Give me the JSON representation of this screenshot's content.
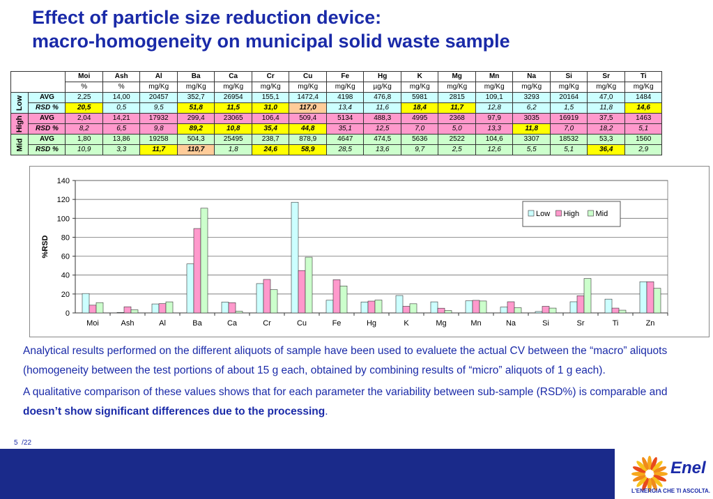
{
  "title": {
    "line1": "Effect of particle size reduction device:",
    "line2": "macro-homogeneity on municipal solid waste sample"
  },
  "table": {
    "elements": [
      "Moi",
      "Ash",
      "Al",
      "Ba",
      "Ca",
      "Cr",
      "Cu",
      "Fe",
      "Hg",
      "K",
      "Mg",
      "Mn",
      "Na",
      "Si",
      "Sr",
      "Ti"
    ],
    "units": [
      "%",
      "%",
      "mg/Kg",
      "mg/Kg",
      "mg/Kg",
      "mg/Kg",
      "mg/Kg",
      "mg/Kg",
      "µg/Kg",
      "mg/Kg",
      "mg/Kg",
      "mg/Kg",
      "mg/Kg",
      "mg/Kg",
      "mg/Kg",
      "mg/Kg"
    ],
    "groups": [
      {
        "name": "Low",
        "color": "#ccffff",
        "avg_label": "AVG",
        "rsd_label": "RSD %",
        "avg": [
          "2,25",
          "14,00",
          "20457",
          "352,7",
          "26954",
          "155,1",
          "1472,4",
          "4198",
          "476,8",
          "5981",
          "2815",
          "109,1",
          "3293",
          "20164",
          "47,0",
          "1484"
        ],
        "rsd": [
          "20,5",
          "0,5",
          "9,5",
          "51,8",
          "11,5",
          "31,0",
          "117,0",
          "13,4",
          "11,6",
          "18,4",
          "11,7",
          "12,8",
          "6,2",
          "1,5",
          "11,8",
          "14,6"
        ],
        "rsd_highlight": [
          "y",
          "",
          "",
          "y",
          "y",
          "y",
          "o",
          "",
          "",
          "y",
          "y",
          "",
          "",
          "",
          "",
          "y"
        ]
      },
      {
        "name": "High",
        "color": "#ff99cc",
        "avg_label": "AVG",
        "rsd_label": "RSD %",
        "avg": [
          "2,04",
          "14,21",
          "17932",
          "299,4",
          "23065",
          "106,4",
          "509,4",
          "5134",
          "488,3",
          "4995",
          "2368",
          "97,9",
          "3035",
          "16919",
          "37,5",
          "1463"
        ],
        "rsd": [
          "8,2",
          "6,5",
          "9,8",
          "89,2",
          "10,8",
          "35,4",
          "44,8",
          "35,1",
          "12,5",
          "7,0",
          "5,0",
          "13,3",
          "11,8",
          "7,0",
          "18,2",
          "5,1"
        ],
        "rsd_highlight": [
          "",
          "",
          "",
          "y",
          "y",
          "y",
          "y",
          "",
          "",
          "",
          "",
          "",
          "y",
          "",
          "",
          ""
        ]
      },
      {
        "name": "Mid",
        "color": "#ccffcc",
        "avg_label": "AVG",
        "rsd_label": "RSD %",
        "avg": [
          "1,80",
          "13,86",
          "19258",
          "504,3",
          "25495",
          "238,7",
          "878,9",
          "4647",
          "474,5",
          "5636",
          "2522",
          "104,6",
          "3307",
          "18532",
          "53,3",
          "1560"
        ],
        "rsd": [
          "10,9",
          "3,3",
          "11,7",
          "110,7",
          "1,8",
          "24,6",
          "58,9",
          "28,5",
          "13,6",
          "9,7",
          "2,5",
          "12,6",
          "5,5",
          "5,1",
          "36,4",
          "2,9"
        ],
        "rsd_highlight": [
          "",
          "",
          "y",
          "o",
          "",
          "y",
          "y",
          "",
          "",
          "",
          "",
          "",
          "",
          "",
          "y",
          ""
        ]
      }
    ]
  },
  "chart_data": {
    "type": "bar",
    "categories": [
      "Moi",
      "Ash",
      "Al",
      "Ba",
      "Ca",
      "Cr",
      "Cu",
      "Fe",
      "Hg",
      "K",
      "Mg",
      "Mn",
      "Na",
      "Si",
      "Sr",
      "Ti",
      "Zn"
    ],
    "series": [
      {
        "name": "Low",
        "color": "#ccffff",
        "values": [
          20.5,
          0.5,
          9.5,
          51.8,
          11.5,
          31.0,
          117.0,
          13.4,
          11.6,
          18.4,
          11.7,
          12.8,
          6.2,
          1.5,
          11.8,
          14.6,
          33
        ]
      },
      {
        "name": "High",
        "color": "#ff99cc",
        "values": [
          8.2,
          6.5,
          9.8,
          89.2,
          10.8,
          35.4,
          44.8,
          35.1,
          12.5,
          7.0,
          5.0,
          13.3,
          11.8,
          7.0,
          18.2,
          5.1,
          33
        ]
      },
      {
        "name": "Mid",
        "color": "#ccffcc",
        "values": [
          10.9,
          3.3,
          11.7,
          110.7,
          1.8,
          24.6,
          58.9,
          28.5,
          13.6,
          9.7,
          2.5,
          12.6,
          5.5,
          5.1,
          36.4,
          2.9,
          26
        ]
      }
    ],
    "ylabel": "%RSD",
    "ylim": [
      0,
      140
    ],
    "yticks": [
      0,
      20,
      40,
      60,
      80,
      100,
      120,
      140
    ],
    "grid": true,
    "legend": "top-right"
  },
  "body": {
    "para1": "Analytical results performed on the different aliquots of sample have been used to evaluete the actual CV between the “macro” aliquots (homogeneity between the test portions of about 15 g each, obtained by combining results of “micro” aliquots of 1 g each).",
    "para2_start": "A qualitative comparison of these values shows that for each parameter the variability between sub-sample (RSD%) is comparable and ",
    "para2_bold": "doesn’t show significant differences due to the processing",
    "para2_end": "."
  },
  "page": {
    "number": "5",
    "total": "/22"
  },
  "logo": {
    "name": "Enel",
    "tagline": "L'ENERGIA CHE TI ASCOLTA."
  }
}
